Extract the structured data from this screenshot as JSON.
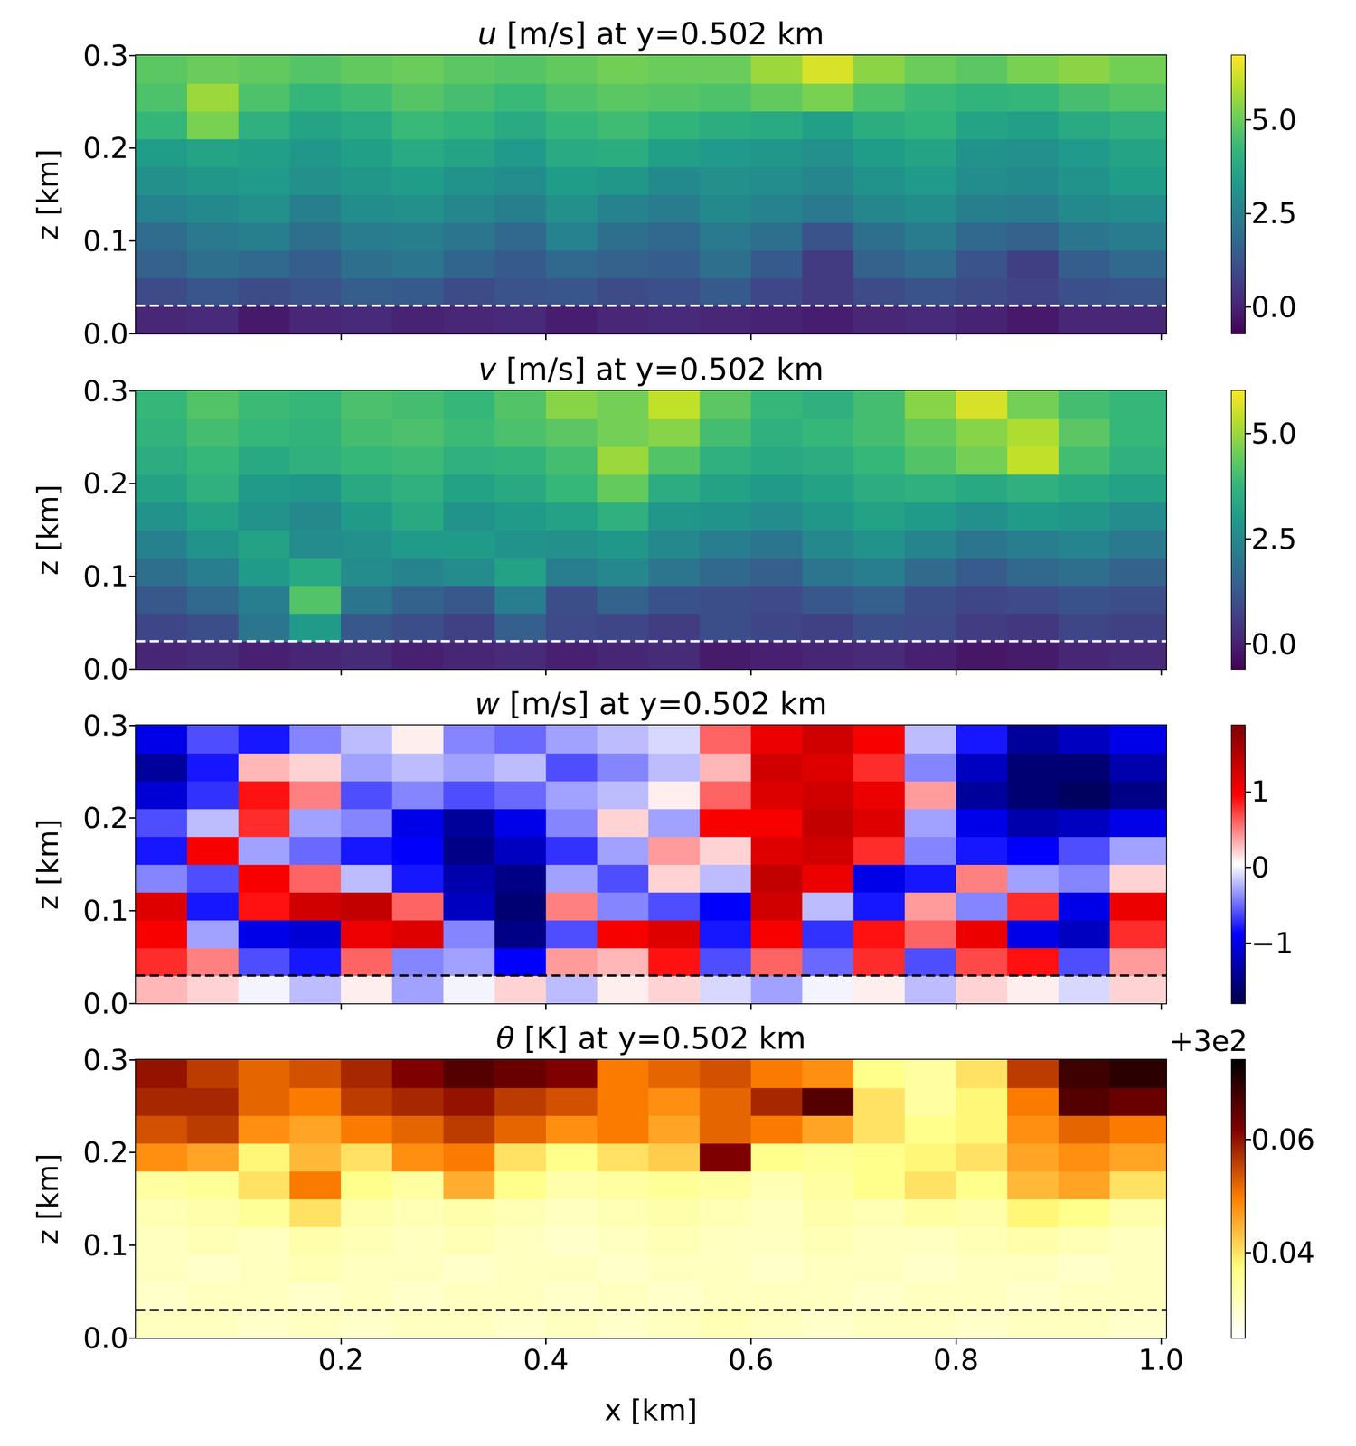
{
  "chart_data": [
    {
      "type": "heatmap",
      "title": "u [m/s] at y=0.502 km",
      "y_label": "z [km]",
      "x_edges": [
        0,
        0.05,
        0.1,
        0.15,
        0.2,
        0.25,
        0.3,
        0.35,
        0.4,
        0.45,
        0.5,
        0.55,
        0.6,
        0.65,
        0.7,
        0.75,
        0.8,
        0.85,
        0.9,
        0.95,
        1.005
      ],
      "z_edges": [
        0,
        0.03,
        0.06,
        0.09,
        0.12,
        0.15,
        0.18,
        0.21,
        0.24,
        0.27,
        0.3
      ],
      "cells": [
        [
          0.1,
          0.2,
          -0.2,
          0.1,
          0.2,
          0.0,
          0.1,
          0.2,
          -0.1,
          0.1,
          0.2,
          0.1,
          0.0,
          -0.1,
          0.1,
          0.2,
          0.0,
          -0.2,
          0.1,
          0.1
        ],
        [
          1.0,
          1.3,
          1.0,
          1.2,
          1.5,
          1.4,
          1.0,
          1.2,
          1.3,
          1.0,
          1.1,
          1.4,
          0.9,
          0.6,
          1.0,
          1.2,
          1.0,
          0.8,
          1.1,
          1.2
        ],
        [
          1.6,
          2.0,
          1.8,
          1.5,
          2.0,
          2.2,
          1.7,
          1.4,
          1.8,
          1.6,
          1.5,
          2.0,
          1.4,
          0.6,
          1.6,
          1.9,
          1.2,
          0.7,
          1.5,
          1.8
        ],
        [
          1.9,
          2.3,
          2.5,
          2.0,
          2.4,
          2.5,
          2.2,
          1.8,
          2.6,
          2.0,
          1.8,
          2.3,
          2.0,
          1.2,
          2.0,
          2.4,
          1.8,
          1.6,
          2.2,
          2.4
        ],
        [
          2.6,
          2.8,
          3.0,
          2.5,
          2.9,
          3.0,
          2.7,
          2.5,
          3.0,
          2.6,
          2.4,
          2.8,
          2.6,
          2.3,
          2.7,
          2.9,
          2.5,
          2.4,
          2.8,
          2.9
        ],
        [
          3.0,
          3.2,
          3.3,
          3.0,
          3.2,
          3.4,
          3.1,
          2.9,
          3.4,
          3.2,
          2.8,
          3.0,
          2.9,
          2.7,
          3.1,
          3.3,
          2.9,
          2.8,
          3.1,
          3.4
        ],
        [
          3.4,
          3.6,
          3.5,
          3.2,
          3.5,
          3.8,
          3.6,
          3.3,
          3.8,
          3.9,
          3.5,
          3.3,
          3.2,
          3.0,
          3.4,
          3.6,
          3.1,
          3.0,
          3.3,
          3.6
        ],
        [
          4.2,
          5.2,
          4.0,
          3.6,
          3.8,
          4.3,
          4.1,
          3.8,
          4.2,
          4.4,
          4.1,
          3.9,
          3.8,
          3.5,
          3.9,
          4.1,
          3.6,
          3.5,
          3.8,
          4.0
        ],
        [
          4.6,
          5.6,
          4.6,
          4.2,
          4.4,
          4.7,
          4.5,
          4.3,
          4.6,
          4.8,
          4.7,
          4.6,
          4.9,
          5.2,
          4.6,
          4.3,
          4.1,
          4.2,
          4.5,
          4.7
        ],
        [
          4.8,
          5.0,
          4.9,
          4.7,
          4.9,
          5.0,
          4.8,
          4.7,
          4.9,
          5.1,
          5.0,
          5.0,
          5.6,
          6.3,
          5.4,
          5.0,
          4.8,
          5.2,
          5.4,
          5.1
        ]
      ],
      "color": "viridis",
      "colorbar": {
        "range": [
          -0.71,
          6.72
        ],
        "ticks": [
          {
            "value": 0,
            "label": "0.0"
          },
          2.5,
          {
            "value": 5,
            "label": "5.0"
          }
        ]
      },
      "hline": 0.03,
      "line_style": "dashed",
      "xlim": [
        0,
        1.005
      ],
      "ylim": [
        0,
        0.3
      ],
      "xticks": [
        0.2,
        0.4,
        0.6,
        0.8,
        {
          "value": 1,
          "label": "1.0"
        }
      ],
      "yticks": [
        {
          "value": 0,
          "label": "0.0"
        },
        0.1,
        0.2,
        0.3
      ],
      "tick_labels": "y"
    },
    {
      "type": "heatmap",
      "title": "v [m/s] at y=0.502 km",
      "y_label": "z [km]",
      "x_edges": [
        0,
        0.05,
        0.1,
        0.15,
        0.2,
        0.25,
        0.3,
        0.35,
        0.4,
        0.45,
        0.5,
        0.55,
        0.6,
        0.65,
        0.7,
        0.75,
        0.8,
        0.85,
        0.9,
        0.95,
        1.005
      ],
      "z_edges": [
        0,
        0.03,
        0.06,
        0.09,
        0.12,
        0.15,
        0.18,
        0.21,
        0.24,
        0.27,
        0.3
      ],
      "cells": [
        [
          0.1,
          0.2,
          0.0,
          0.1,
          0.2,
          0.0,
          0.1,
          0.2,
          0.0,
          0.1,
          0.2,
          -0.1,
          0.0,
          0.1,
          0.2,
          0.0,
          -0.2,
          -0.1,
          0.1,
          0.2
        ],
        [
          0.8,
          1.0,
          2.0,
          3.0,
          1.2,
          1.0,
          0.7,
          1.4,
          0.9,
          0.8,
          0.6,
          1.0,
          0.8,
          0.7,
          1.0,
          0.9,
          0.6,
          0.5,
          0.8,
          0.7
        ],
        [
          1.2,
          1.6,
          2.2,
          4.2,
          2.0,
          1.5,
          1.2,
          2.2,
          1.0,
          1.5,
          1.1,
          1.0,
          0.9,
          1.2,
          1.4,
          1.0,
          0.8,
          0.9,
          1.1,
          1.0
        ],
        [
          1.8,
          2.2,
          3.0,
          3.4,
          2.6,
          2.4,
          2.6,
          3.2,
          2.2,
          2.5,
          2.0,
          1.6,
          1.4,
          2.0,
          2.2,
          1.7,
          1.3,
          1.6,
          1.8,
          1.5
        ],
        [
          2.3,
          2.8,
          3.2,
          2.6,
          2.7,
          3.0,
          3.0,
          2.8,
          2.7,
          2.9,
          2.5,
          2.2,
          2.0,
          2.5,
          2.8,
          2.4,
          2.0,
          2.2,
          2.4,
          2.1
        ],
        [
          2.8,
          3.2,
          2.8,
          2.5,
          3.0,
          3.4,
          2.8,
          3.0,
          3.2,
          3.6,
          2.9,
          2.8,
          2.6,
          2.9,
          3.2,
          3.0,
          2.7,
          3.0,
          2.9,
          2.6
        ],
        [
          3.2,
          3.6,
          3.0,
          2.9,
          3.4,
          3.6,
          3.2,
          3.4,
          3.8,
          4.4,
          3.5,
          3.2,
          3.0,
          3.2,
          3.5,
          3.6,
          3.4,
          3.6,
          3.4,
          3.2
        ],
        [
          3.5,
          3.8,
          3.4,
          3.6,
          3.8,
          3.9,
          3.6,
          3.7,
          4.0,
          5.0,
          4.2,
          3.6,
          3.4,
          3.5,
          3.8,
          4.2,
          4.6,
          5.4,
          4.0,
          3.6
        ],
        [
          3.7,
          4.0,
          3.8,
          3.7,
          4.0,
          4.1,
          3.9,
          4.1,
          4.3,
          4.6,
          4.8,
          4.0,
          3.6,
          3.8,
          4.0,
          4.4,
          4.8,
          5.2,
          4.3,
          3.8
        ],
        [
          3.8,
          4.2,
          3.9,
          3.8,
          4.1,
          4.0,
          3.8,
          4.2,
          4.8,
          4.6,
          5.4,
          4.3,
          3.8,
          3.6,
          4.0,
          4.8,
          5.6,
          4.6,
          4.0,
          3.8
        ]
      ],
      "color": "viridis",
      "colorbar": {
        "range": [
          -0.59,
          6.01
        ],
        "ticks": [
          {
            "value": 0,
            "label": "0.0"
          },
          2.5,
          {
            "value": 5,
            "label": "5.0"
          }
        ]
      },
      "hline": 0.03,
      "line_style": "dashed",
      "xlim": [
        0,
        1.005
      ],
      "ylim": [
        0,
        0.3
      ],
      "xticks": [
        0.2,
        0.4,
        0.6,
        0.8,
        {
          "value": 1,
          "label": "1.0"
        }
      ],
      "yticks": [
        {
          "value": 0,
          "label": "0.0"
        },
        0.1,
        0.2,
        0.3
      ],
      "tick_labels": "y"
    },
    {
      "type": "heatmap",
      "title": "w [m/s] at y=0.502 km",
      "y_label": "z [km]",
      "x_edges": [
        0,
        0.05,
        0.1,
        0.15,
        0.2,
        0.25,
        0.3,
        0.35,
        0.4,
        0.45,
        0.5,
        0.55,
        0.6,
        0.65,
        0.7,
        0.75,
        0.8,
        0.85,
        0.9,
        0.95,
        1.005
      ],
      "z_edges": [
        0,
        0.03,
        0.06,
        0.09,
        0.12,
        0.15,
        0.18,
        0.21,
        0.24,
        0.27,
        0.3
      ],
      "cells": [
        [
          0.3,
          0.2,
          0.0,
          -0.2,
          0.1,
          -0.3,
          0.0,
          0.2,
          -0.2,
          0.1,
          0.2,
          -0.1,
          -0.3,
          0.0,
          0.1,
          -0.2,
          0.2,
          0.1,
          -0.1,
          0.2
        ],
        [
          0.8,
          0.5,
          -0.6,
          -0.8,
          0.6,
          -0.4,
          -0.3,
          -0.9,
          0.4,
          0.3,
          0.9,
          -0.6,
          0.6,
          -0.5,
          0.8,
          -0.6,
          0.7,
          0.9,
          -0.6,
          0.4
        ],
        [
          1.0,
          -0.3,
          -1.0,
          -1.1,
          1.1,
          1.2,
          -0.4,
          -1.5,
          -0.6,
          1.0,
          1.2,
          -0.8,
          1.0,
          -0.7,
          0.9,
          0.6,
          1.1,
          -1.0,
          -1.2,
          0.8
        ],
        [
          1.2,
          -0.8,
          0.9,
          1.3,
          1.4,
          0.6,
          -1.2,
          -1.6,
          0.5,
          -0.4,
          -0.6,
          -0.9,
          1.3,
          -0.2,
          -0.8,
          0.4,
          -0.4,
          0.8,
          -1.0,
          1.1
        ],
        [
          -0.4,
          -0.6,
          1.0,
          0.6,
          -0.2,
          -0.8,
          -1.3,
          -1.5,
          -0.3,
          -0.6,
          0.2,
          -0.2,
          1.4,
          1.1,
          -1.0,
          -0.8,
          0.5,
          -0.3,
          -0.4,
          0.2
        ],
        [
          -0.8,
          1.0,
          -0.3,
          -0.5,
          -0.8,
          -0.9,
          -1.5,
          -1.2,
          -0.7,
          -0.3,
          0.4,
          0.2,
          1.2,
          1.3,
          0.8,
          -0.4,
          -0.8,
          -0.9,
          -0.6,
          -0.3
        ],
        [
          -0.6,
          -0.2,
          0.8,
          -0.3,
          -0.4,
          -1.0,
          -1.4,
          -1.0,
          -0.4,
          0.2,
          -0.3,
          1.0,
          1.0,
          1.4,
          1.2,
          -0.3,
          -1.0,
          -1.3,
          -1.2,
          -1.0
        ],
        [
          -1.1,
          -0.7,
          0.9,
          0.5,
          -0.6,
          -0.4,
          -0.6,
          -0.5,
          -0.3,
          -0.2,
          0.1,
          0.6,
          1.2,
          1.3,
          1.1,
          0.4,
          -1.4,
          -1.6,
          -1.7,
          -1.5
        ],
        [
          -1.4,
          -0.8,
          0.3,
          0.2,
          -0.3,
          -0.2,
          -0.3,
          -0.2,
          -0.6,
          -0.4,
          -0.2,
          0.3,
          1.3,
          1.2,
          0.8,
          -0.4,
          -1.2,
          -1.6,
          -1.6,
          -1.3
        ],
        [
          -1.0,
          -0.6,
          -0.8,
          -0.4,
          -0.2,
          0.1,
          -0.4,
          -0.5,
          -0.3,
          -0.2,
          -0.1,
          0.6,
          1.1,
          1.3,
          1.0,
          -0.2,
          -0.8,
          -1.4,
          -1.2,
          -1.0
        ]
      ],
      "color": "seismic",
      "colorbar": {
        "range": [
          -1.8,
          1.88
        ],
        "ticks": [
          {
            "value": -1,
            "label": "−1"
          },
          0,
          1
        ]
      },
      "hline": 0.03,
      "line_style": "dashed",
      "xlim": [
        0,
        1.005
      ],
      "ylim": [
        0,
        0.3
      ],
      "xticks": [
        0.2,
        0.4,
        0.6,
        0.8,
        {
          "value": 1,
          "label": "1.0"
        }
      ],
      "yticks": [
        {
          "value": 0,
          "label": "0.0"
        },
        0.1,
        0.2,
        0.3
      ],
      "tick_labels": "y"
    },
    {
      "type": "heatmap",
      "title": "θ [K] at y=0.502 km",
      "x_label": "x [km]",
      "y_label": "z [km]",
      "x_edges": [
        0,
        0.05,
        0.1,
        0.15,
        0.2,
        0.25,
        0.3,
        0.35,
        0.4,
        0.45,
        0.5,
        0.55,
        0.6,
        0.65,
        0.7,
        0.75,
        0.8,
        0.85,
        0.9,
        0.95,
        1.005
      ],
      "z_edges": [
        0,
        0.03,
        0.06,
        0.09,
        0.12,
        0.15,
        0.18,
        0.21,
        0.24,
        0.27,
        0.3
      ],
      "cells": [
        [
          300.031,
          300.031,
          300.03,
          300.031,
          300.03,
          300.031,
          300.031,
          300.03,
          300.031,
          300.03,
          300.031,
          300.032,
          300.031,
          300.03,
          300.031,
          300.031,
          300.03,
          300.031,
          300.031,
          300.03
        ],
        [
          300.03,
          300.031,
          300.031,
          300.03,
          300.031,
          300.03,
          300.031,
          300.031,
          300.03,
          300.031,
          300.03,
          300.031,
          300.031,
          300.031,
          300.03,
          300.031,
          300.031,
          300.03,
          300.031,
          300.031
        ],
        [
          300.031,
          300.03,
          300.031,
          300.032,
          300.031,
          300.031,
          300.03,
          300.031,
          300.031,
          300.03,
          300.031,
          300.031,
          300.03,
          300.031,
          300.031,
          300.03,
          300.031,
          300.031,
          300.03,
          300.031
        ],
        [
          300.031,
          300.032,
          300.031,
          300.033,
          300.032,
          300.031,
          300.032,
          300.031,
          300.03,
          300.031,
          300.032,
          300.031,
          300.031,
          300.032,
          300.031,
          300.031,
          300.032,
          300.033,
          300.032,
          300.031
        ],
        [
          300.032,
          300.033,
          300.035,
          300.04,
          300.033,
          300.032,
          300.033,
          300.032,
          300.031,
          300.032,
          300.033,
          300.032,
          300.031,
          300.033,
          300.032,
          300.034,
          300.033,
          300.038,
          300.036,
          300.033
        ],
        [
          300.034,
          300.035,
          300.04,
          300.05,
          300.036,
          300.034,
          300.045,
          300.036,
          300.033,
          300.034,
          300.035,
          300.034,
          300.032,
          300.034,
          300.036,
          300.04,
          300.036,
          300.044,
          300.046,
          300.04
        ],
        [
          300.048,
          300.046,
          300.038,
          300.044,
          300.04,
          300.048,
          300.05,
          300.04,
          300.036,
          300.04,
          300.042,
          300.062,
          300.036,
          300.035,
          300.036,
          300.038,
          300.04,
          300.046,
          300.048,
          300.046
        ],
        [
          300.054,
          300.056,
          300.048,
          300.046,
          300.05,
          300.052,
          300.056,
          300.052,
          300.048,
          300.05,
          300.046,
          300.052,
          300.05,
          300.046,
          300.04,
          300.036,
          300.038,
          300.048,
          300.052,
          300.05
        ],
        [
          300.058,
          300.058,
          300.052,
          300.05,
          300.056,
          300.058,
          300.06,
          300.056,
          300.054,
          300.05,
          300.048,
          300.052,
          300.058,
          300.066,
          300.04,
          300.034,
          300.038,
          300.05,
          300.066,
          300.064
        ],
        [
          300.06,
          300.056,
          300.052,
          300.054,
          300.058,
          300.062,
          300.066,
          300.064,
          300.062,
          300.05,
          300.052,
          300.054,
          300.05,
          300.048,
          300.036,
          300.034,
          300.04,
          300.056,
          300.068,
          300.07
        ]
      ],
      "color": "afmhot_r",
      "colorbar": {
        "range": [
          300.0249,
          300.0741
        ],
        "ticks": [
          {
            "value": 300.04,
            "label": "0.04"
          },
          {
            "value": 300.06,
            "label": "0.06"
          }
        ],
        "offset_label": "+3e2"
      },
      "hline": 0.03,
      "line_style": "dashed",
      "xlim": [
        0,
        1.005
      ],
      "ylim": [
        0,
        0.3
      ],
      "xticks": [
        0.2,
        0.4,
        0.6,
        0.8,
        {
          "value": 1,
          "label": "1.0"
        }
      ],
      "yticks": [
        {
          "value": 0,
          "label": "0.0"
        },
        0.1,
        0.2,
        0.3
      ]
    }
  ]
}
